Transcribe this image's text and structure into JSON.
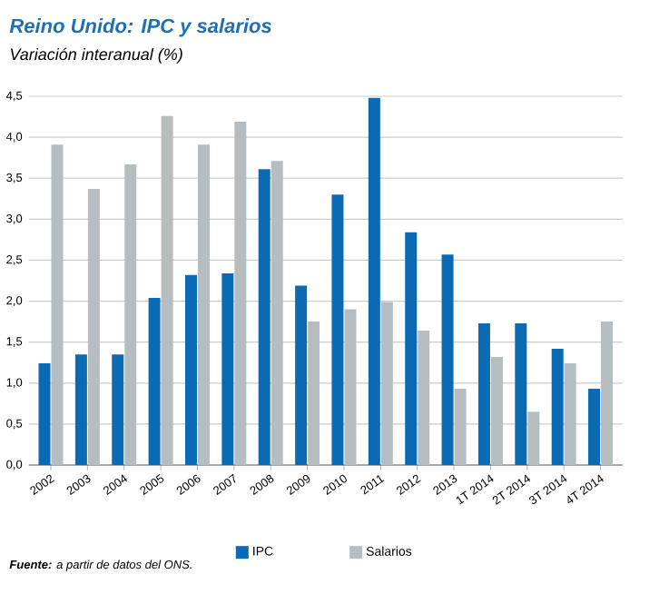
{
  "chart_data": {
    "type": "bar",
    "title": "Reino Unido: IPC y salarios",
    "subtitle": "Variación interanual (%)",
    "categories": [
      "2002",
      "2003",
      "2004",
      "2005",
      "2006",
      "2007",
      "2008",
      "2009",
      "2010",
      "2011",
      "2012",
      "2013",
      "1T 2014",
      "2T 2014",
      "3T 2014",
      "4T 2014"
    ],
    "series": [
      {
        "name": "IPC",
        "color": "#0a6ab4",
        "values": [
          1.24,
          1.35,
          1.35,
          2.04,
          2.32,
          2.34,
          3.61,
          2.19,
          3.3,
          4.48,
          2.84,
          2.57,
          1.73,
          1.73,
          1.42,
          0.93
        ]
      },
      {
        "name": "Salarios",
        "color": "#b5bdc1",
        "values": [
          3.91,
          3.37,
          3.67,
          4.26,
          3.91,
          4.19,
          3.71,
          1.75,
          1.9,
          1.99,
          1.64,
          0.93,
          1.32,
          0.65,
          1.24,
          1.75
        ]
      }
    ],
    "ylim": [
      0,
      4.5
    ],
    "yticks": [
      {
        "value": 0,
        "label": "0,0"
      },
      {
        "value": 0.5,
        "label": "0,5"
      },
      {
        "value": 1,
        "label": "1,0"
      },
      {
        "value": 1.5,
        "label": "1,5"
      },
      {
        "value": 2,
        "label": "2,0"
      },
      {
        "value": 2.5,
        "label": "2,5"
      },
      {
        "value": 3,
        "label": "3,0"
      },
      {
        "value": 3.5,
        "label": "3,5"
      },
      {
        "value": 4,
        "label": "4,0"
      },
      {
        "value": 4.5,
        "label": "4,5"
      }
    ],
    "grid": "y",
    "legend": "bottom",
    "annotations": [
      "**Fuente:** a partir de datos del ONS."
    ]
  }
}
